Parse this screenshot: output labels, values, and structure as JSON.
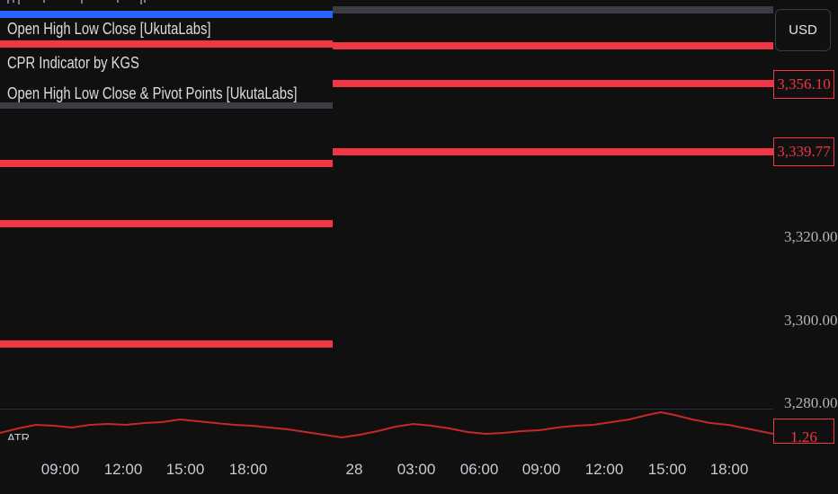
{
  "legend": {
    "items": [
      "Open High Low Close [UkutaLabs]",
      "CPR Indicator by KGS",
      "Open High Low Close & Pivot Points [UkutaLabs]"
    ]
  },
  "price_axis": {
    "currency_button": "USD",
    "tag_upper": "3,356.10",
    "tag_lower": "3,339.77",
    "tick_labels": [
      "3,320.00",
      "3,300.00",
      "3,280.00"
    ]
  },
  "atr_pane": {
    "label": "ATR",
    "value_tag": "1.26"
  },
  "time_axis": {
    "labels": [
      "09:00",
      "12:00",
      "15:00",
      "18:00",
      "28",
      "03:00",
      "06:00",
      "09:00",
      "12:00",
      "15:00",
      "18:00"
    ]
  },
  "colors": {
    "background": "#101010",
    "level_line": "#f23645",
    "day_bar_blue": "#2962ff",
    "day_bar_grey": "#3a3d44",
    "atr_line": "#c62828"
  }
}
